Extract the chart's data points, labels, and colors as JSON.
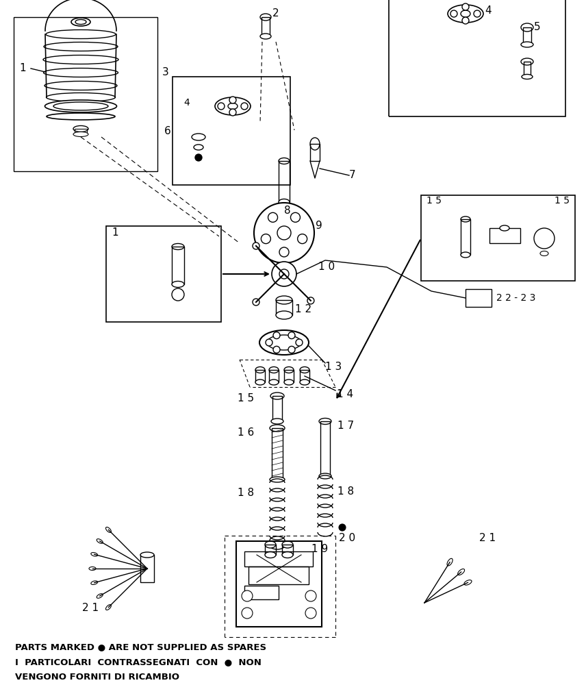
{
  "background_color": "#ffffff",
  "line_color": "#000000",
  "text_color": "#000000",
  "figsize": [
    8.56,
    10.0
  ],
  "dpi": 100,
  "footnote_lines": [
    "PARTS MARKED ● ARE NOT SUPPLIED AS SPARES",
    "I  PARTICOLARI  CONTRASSEGNATI  CON  ●  NON",
    "VENGONO FORNITI DI RICAMBIO"
  ]
}
